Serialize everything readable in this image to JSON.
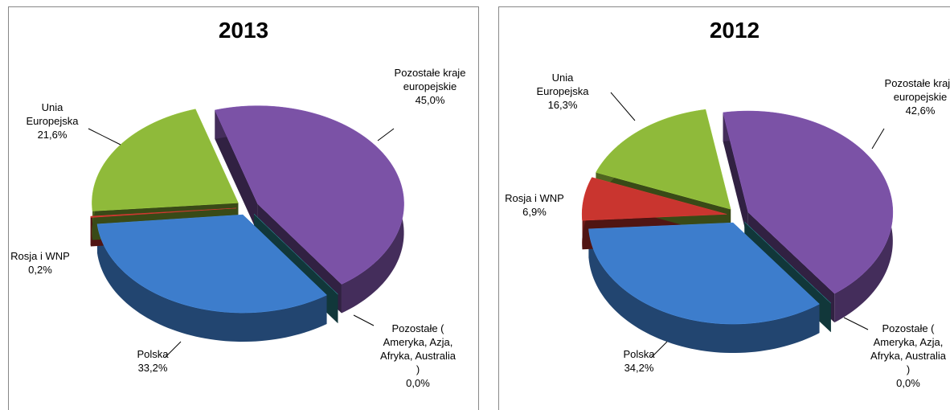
{
  "chart_data": [
    {
      "type": "pie",
      "title": "2013",
      "categories": [
        "Pozostałe kraje europejskie",
        "Pozostałe ( Ameryka, Azja, Afryka, Australia )",
        "Polska",
        "Rosja i WNP",
        "Unia Europejska"
      ],
      "values": [
        45.0,
        0.0,
        33.2,
        0.2,
        21.6
      ],
      "value_labels": [
        "45,0%",
        "0,0%",
        "33,2%",
        "0,2%",
        "21,6%"
      ],
      "colors": [
        "#7b52a6",
        "#2a8a92",
        "#3d7dcc",
        "#c9352f",
        "#8fba3a"
      ]
    },
    {
      "type": "pie",
      "title": "2012",
      "categories": [
        "Pozostałe kraje europejskie",
        "Pozostałe ( Ameryka, Azja, Afryka, Australia )",
        "Polska",
        "Rosja i WNP",
        "Unia Europejska"
      ],
      "values": [
        42.6,
        0.0,
        34.2,
        6.9,
        16.3
      ],
      "value_labels": [
        "42,6%",
        "0,0%",
        "34,2%",
        "6,9%",
        "16,3%"
      ],
      "colors": [
        "#7b52a6",
        "#2a8a92",
        "#3d7dcc",
        "#c9352f",
        "#8fba3a"
      ]
    }
  ]
}
